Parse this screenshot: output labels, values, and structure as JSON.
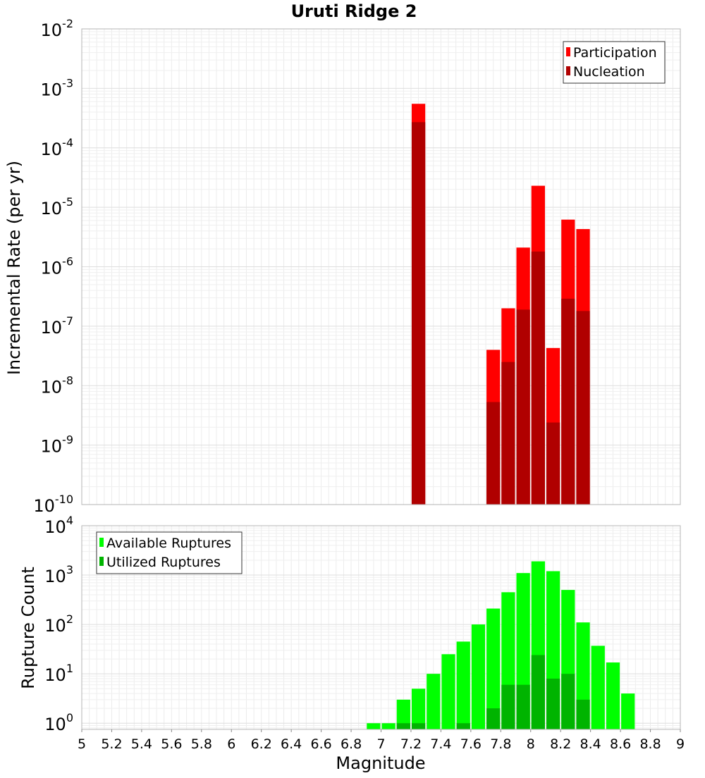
{
  "title": "Uruti Ridge 2",
  "chart_data": [
    {
      "type": "bar",
      "title": "Uruti Ridge 2",
      "xlabel": "Magnitude",
      "ylabel": "Incremental Rate (per yr)",
      "y_scale": "log",
      "ylim": [
        1e-10,
        0.01
      ],
      "xlim": [
        5,
        9
      ],
      "bar_width": 0.1,
      "grid": true,
      "legend_position": "top-right",
      "y_ticks": [
        {
          "base": "10",
          "exp": "-10"
        },
        {
          "base": "10",
          "exp": "-9"
        },
        {
          "base": "10",
          "exp": "-8"
        },
        {
          "base": "10",
          "exp": "-7"
        },
        {
          "base": "10",
          "exp": "-6"
        },
        {
          "base": "10",
          "exp": "-5"
        },
        {
          "base": "10",
          "exp": "-4"
        },
        {
          "base": "10",
          "exp": "-3"
        },
        {
          "base": "10",
          "exp": "-2"
        }
      ],
      "series": [
        {
          "name": "Participation",
          "color": "#ff0000",
          "points": [
            {
              "x": 7.25,
              "y": 0.00055
            },
            {
              "x": 7.75,
              "y": 4e-08
            },
            {
              "x": 7.85,
              "y": 2e-07
            },
            {
              "x": 7.95,
              "y": 2.1e-06
            },
            {
              "x": 8.05,
              "y": 2.3e-05
            },
            {
              "x": 8.15,
              "y": 4.3e-08
            },
            {
              "x": 8.25,
              "y": 6.2e-06
            },
            {
              "x": 8.35,
              "y": 4.3e-06
            }
          ]
        },
        {
          "name": "Nucleation",
          "color": "#b00000",
          "points": [
            {
              "x": 7.25,
              "y": 0.00027
            },
            {
              "x": 7.75,
              "y": 5.3e-09
            },
            {
              "x": 7.85,
              "y": 2.5e-08
            },
            {
              "x": 7.95,
              "y": 1.9e-07
            },
            {
              "x": 8.05,
              "y": 1.8e-06
            },
            {
              "x": 8.15,
              "y": 2.4e-09
            },
            {
              "x": 8.25,
              "y": 2.9e-07
            },
            {
              "x": 8.35,
              "y": 1.8e-07
            }
          ]
        }
      ]
    },
    {
      "type": "bar",
      "xlabel": "Magnitude",
      "ylabel": "Rupture Count",
      "y_scale": "log",
      "ylim": [
        0.75,
        10000
      ],
      "xlim": [
        5,
        9
      ],
      "bar_width": 0.1,
      "grid": true,
      "legend_position": "top-left",
      "x_ticks": [
        "5",
        "5.2",
        "5.4",
        "5.6",
        "5.8",
        "6",
        "6.2",
        "6.4",
        "6.6",
        "6.8",
        "7",
        "7.2",
        "7.4",
        "7.6",
        "7.8",
        "8",
        "8.2",
        "8.4",
        "8.6",
        "8.8",
        "9"
      ],
      "y_ticks": [
        {
          "base": "10",
          "exp": "0"
        },
        {
          "base": "10",
          "exp": "1"
        },
        {
          "base": "10",
          "exp": "2"
        },
        {
          "base": "10",
          "exp": "3"
        },
        {
          "base": "10",
          "exp": "4"
        }
      ],
      "series": [
        {
          "name": "Available Ruptures",
          "color": "#00ff00",
          "points": [
            {
              "x": 6.95,
              "y": 1
            },
            {
              "x": 7.05,
              "y": 1
            },
            {
              "x": 7.15,
              "y": 3
            },
            {
              "x": 7.25,
              "y": 5
            },
            {
              "x": 7.35,
              "y": 10
            },
            {
              "x": 7.45,
              "y": 25
            },
            {
              "x": 7.55,
              "y": 45
            },
            {
              "x": 7.65,
              "y": 100
            },
            {
              "x": 7.75,
              "y": 210
            },
            {
              "x": 7.85,
              "y": 450
            },
            {
              "x": 7.95,
              "y": 1100
            },
            {
              "x": 8.05,
              "y": 1900
            },
            {
              "x": 8.15,
              "y": 1200
            },
            {
              "x": 8.25,
              "y": 500
            },
            {
              "x": 8.35,
              "y": 110
            },
            {
              "x": 8.45,
              "y": 37
            },
            {
              "x": 8.55,
              "y": 17
            },
            {
              "x": 8.65,
              "y": 4
            }
          ]
        },
        {
          "name": "Utilized Ruptures",
          "color": "#00b400",
          "points": [
            {
              "x": 7.15,
              "y": 1
            },
            {
              "x": 7.25,
              "y": 1
            },
            {
              "x": 7.55,
              "y": 1
            },
            {
              "x": 7.75,
              "y": 2
            },
            {
              "x": 7.85,
              "y": 6
            },
            {
              "x": 7.95,
              "y": 6
            },
            {
              "x": 8.05,
              "y": 24
            },
            {
              "x": 8.15,
              "y": 8
            },
            {
              "x": 8.25,
              "y": 10
            },
            {
              "x": 8.35,
              "y": 3
            }
          ]
        }
      ]
    }
  ]
}
